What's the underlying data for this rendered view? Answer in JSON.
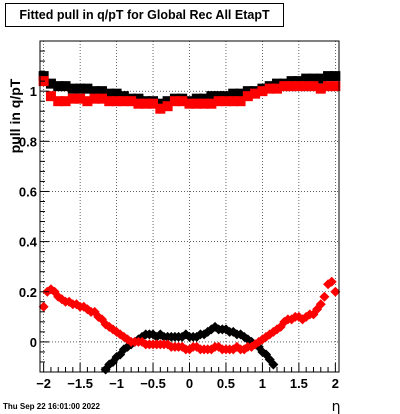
{
  "title": "Fitted pull in q/pT for Global Rec All EtapT",
  "timestamp": "Thu Sep 22 16:01:00 2022",
  "chart_data": {
    "type": "scatter",
    "title": "Fitted pull in q/pT for Global Rec All EtapT",
    "xlabel": "η",
    "ylabel": "pull in q/pT",
    "xlim": [
      -2.05,
      2.05
    ],
    "ylim": [
      -0.12,
      1.2
    ],
    "xticks": [
      -2,
      -1.5,
      -1,
      -0.5,
      0,
      0.5,
      1,
      1.5,
      2
    ],
    "xtick_labels": [
      "−2",
      "−1.5",
      "−1",
      "−0.5",
      "0",
      "0.5",
      "1",
      "1.5",
      "2"
    ],
    "yticks": [
      0,
      0.2,
      0.4,
      0.6,
      0.8,
      1
    ],
    "ytick_labels": [
      "0",
      "0.2",
      "0.4",
      "0.6",
      "0.8",
      "1"
    ],
    "grid": true,
    "series": [
      {
        "color": "#000000",
        "marker": "square",
        "role": "mean",
        "x": [
          -2.0,
          -1.9,
          -1.8,
          -1.7,
          -1.6,
          -1.5,
          -1.4,
          -1.3,
          -1.2,
          -1.1,
          -1.0,
          -0.9,
          -0.8,
          -0.7,
          -0.6,
          -0.5,
          -0.4,
          -0.3,
          -0.2,
          -0.1,
          0.0,
          0.1,
          0.2,
          0.3,
          0.4,
          0.5,
          0.6,
          0.7,
          0.8,
          0.9,
          1.0,
          1.1,
          1.2,
          1.3,
          1.4,
          1.5,
          1.6,
          1.7,
          1.8,
          1.9,
          2.0
        ],
        "y": [
          1.06,
          1.03,
          1.02,
          1.02,
          1.01,
          1.01,
          1.01,
          1.0,
          1.0,
          0.99,
          0.99,
          0.98,
          0.97,
          0.97,
          0.96,
          0.96,
          0.95,
          0.96,
          0.97,
          0.97,
          0.96,
          0.97,
          0.97,
          0.98,
          0.98,
          0.98,
          0.99,
          0.99,
          1.0,
          1.0,
          1.01,
          1.02,
          1.03,
          1.03,
          1.04,
          1.04,
          1.05,
          1.05,
          1.05,
          1.06,
          1.06
        ]
      },
      {
        "color": "#ff0000",
        "marker": "square",
        "role": "mean",
        "x": [
          -2.0,
          -1.9,
          -1.8,
          -1.7,
          -1.6,
          -1.5,
          -1.4,
          -1.3,
          -1.2,
          -1.1,
          -1.0,
          -0.9,
          -0.8,
          -0.7,
          -0.6,
          -0.5,
          -0.4,
          -0.3,
          -0.2,
          -0.1,
          0.0,
          0.1,
          0.2,
          0.3,
          0.4,
          0.5,
          0.6,
          0.7,
          0.8,
          0.9,
          1.0,
          1.1,
          1.2,
          1.3,
          1.4,
          1.5,
          1.6,
          1.7,
          1.8,
          1.9,
          2.0
        ],
        "y": [
          1.04,
          0.98,
          0.96,
          0.96,
          0.97,
          0.97,
          0.96,
          0.97,
          0.97,
          0.96,
          0.96,
          0.96,
          0.96,
          0.95,
          0.95,
          0.95,
          0.93,
          0.94,
          0.96,
          0.96,
          0.95,
          0.95,
          0.95,
          0.95,
          0.96,
          0.96,
          0.96,
          0.96,
          0.98,
          0.99,
          1.0,
          1.01,
          1.01,
          1.02,
          1.02,
          1.02,
          1.02,
          1.02,
          1.01,
          1.02,
          1.02
        ]
      },
      {
        "color": "#000000",
        "marker": "diamond",
        "role": "sigma",
        "x": [
          -1.15,
          -1.1,
          -1.05,
          -1.0,
          -0.95,
          -0.9,
          -0.85,
          -0.8,
          -0.75,
          -0.7,
          -0.65,
          -0.6,
          -0.55,
          -0.5,
          -0.45,
          -0.4,
          -0.35,
          -0.3,
          -0.25,
          -0.2,
          -0.15,
          -0.1,
          -0.05,
          0.0,
          0.05,
          0.1,
          0.15,
          0.2,
          0.25,
          0.3,
          0.35,
          0.4,
          0.45,
          0.5,
          0.55,
          0.6,
          0.65,
          0.7,
          0.75,
          0.8,
          0.85,
          0.9,
          0.95,
          1.0,
          1.05,
          1.1,
          1.15
        ],
        "y": [
          -0.11,
          -0.09,
          -0.08,
          -0.06,
          -0.05,
          -0.03,
          -0.02,
          -0.01,
          0.0,
          0.01,
          0.02,
          0.03,
          0.03,
          0.03,
          0.02,
          0.03,
          0.02,
          0.02,
          0.02,
          0.02,
          0.02,
          0.02,
          0.03,
          0.02,
          0.02,
          0.02,
          0.03,
          0.03,
          0.04,
          0.05,
          0.06,
          0.05,
          0.05,
          0.05,
          0.04,
          0.04,
          0.03,
          0.03,
          0.02,
          0.01,
          0.0,
          -0.01,
          -0.02,
          -0.04,
          -0.05,
          -0.07,
          -0.09
        ]
      },
      {
        "color": "#ff0000",
        "marker": "diamond",
        "role": "sigma",
        "x": [
          -2.0,
          -1.95,
          -1.9,
          -1.85,
          -1.8,
          -1.75,
          -1.7,
          -1.65,
          -1.6,
          -1.55,
          -1.5,
          -1.45,
          -1.4,
          -1.35,
          -1.3,
          -1.25,
          -1.2,
          -1.15,
          -1.1,
          -1.05,
          -1.0,
          -0.95,
          -0.9,
          -0.85,
          -0.8,
          -0.75,
          -0.7,
          -0.65,
          -0.6,
          -0.55,
          -0.5,
          -0.45,
          -0.4,
          -0.35,
          -0.3,
          -0.25,
          -0.2,
          -0.15,
          -0.1,
          -0.05,
          0.0,
          0.05,
          0.1,
          0.15,
          0.2,
          0.25,
          0.3,
          0.35,
          0.4,
          0.45,
          0.5,
          0.55,
          0.6,
          0.65,
          0.7,
          0.75,
          0.8,
          0.85,
          0.9,
          0.95,
          1.0,
          1.05,
          1.1,
          1.15,
          1.2,
          1.25,
          1.3,
          1.35,
          1.4,
          1.45,
          1.5,
          1.55,
          1.6,
          1.65,
          1.7,
          1.75,
          1.8,
          1.85,
          1.9,
          1.95,
          2.0
        ],
        "y": [
          0.14,
          0.2,
          0.21,
          0.2,
          0.18,
          0.17,
          0.16,
          0.16,
          0.15,
          0.15,
          0.14,
          0.14,
          0.13,
          0.12,
          0.12,
          0.1,
          0.09,
          0.07,
          0.06,
          0.05,
          0.04,
          0.03,
          0.02,
          0.01,
          0.0,
          0.0,
          0.0,
          0.0,
          -0.01,
          -0.01,
          -0.01,
          -0.01,
          -0.01,
          -0.01,
          -0.01,
          -0.02,
          -0.02,
          -0.02,
          -0.02,
          -0.03,
          -0.03,
          -0.02,
          -0.02,
          -0.03,
          -0.03,
          -0.03,
          -0.03,
          -0.02,
          -0.02,
          -0.03,
          -0.03,
          -0.03,
          -0.03,
          -0.02,
          -0.03,
          -0.03,
          -0.02,
          -0.02,
          -0.01,
          0.0,
          0.01,
          0.02,
          0.03,
          0.04,
          0.05,
          0.06,
          0.08,
          0.09,
          0.09,
          0.1,
          0.1,
          0.09,
          0.1,
          0.11,
          0.11,
          0.13,
          0.15,
          0.18,
          0.23,
          0.24,
          0.2
        ]
      }
    ]
  }
}
